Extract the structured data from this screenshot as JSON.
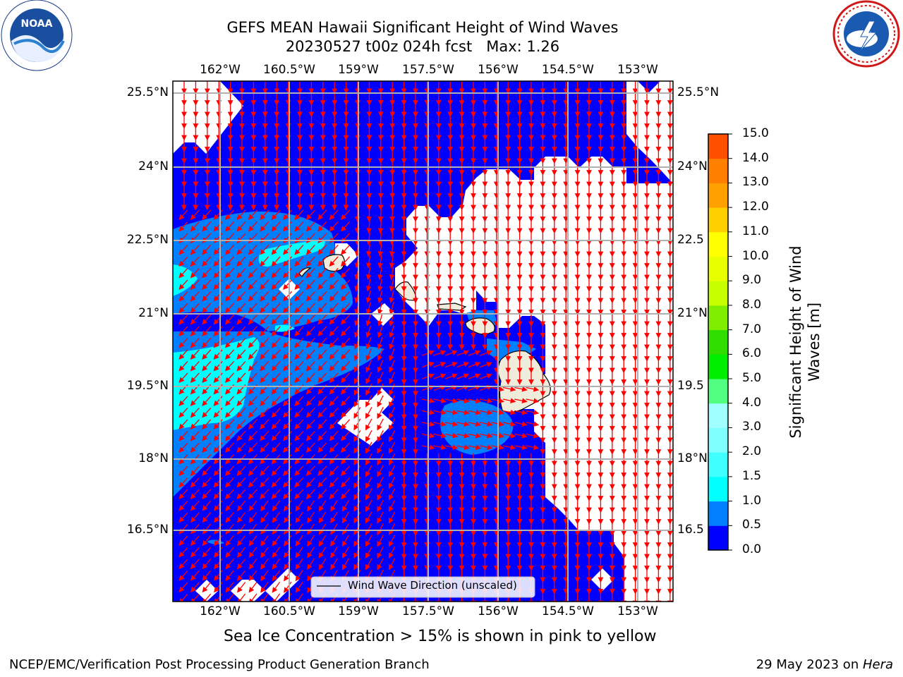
{
  "title_line1": "GEFS MEAN Hawaii Significant Height of Wind Waves",
  "title_line2": "20230527 t00z 024h fcst   Max: 1.26",
  "lon_ticks": [
    "162°W",
    "160.5°W",
    "159°W",
    "157.5°W",
    "156°W",
    "154.5°W",
    "153°W"
  ],
  "lat_ticks_left": [
    "25.5°N",
    "24°N",
    "22.5°N",
    "21°N",
    "19.5°N",
    "18°N",
    "16.5°N"
  ],
  "lat_ticks_right": [
    "25.5°N",
    "24°N",
    "22.5",
    "21°N",
    "19.5",
    "18°N",
    "16.5"
  ],
  "legend_label": "Wind Wave Direction (unscaled)",
  "colorbar": {
    "label_line1": "Significant Height of Wind",
    "label_line2": "Waves [m]",
    "ticks": [
      "15.0",
      "14.0",
      "13.0",
      "12.0",
      "11.0",
      "10.0",
      "9.0",
      "8.0",
      "7.0",
      "6.0",
      "5.0",
      "4.0",
      "3.0",
      "2.0",
      "1.5",
      "1.0",
      "0.5",
      "0.0"
    ],
    "colors": [
      "#0000ff",
      "#0080ff",
      "#00ffff",
      "#40ffff",
      "#80ffff",
      "#a0ffff",
      "#50ff80",
      "#00ee00",
      "#30dd00",
      "#80ee00",
      "#c8ff00",
      "#e8ff00",
      "#ffff00",
      "#ffd000",
      "#ffa000",
      "#ff8000",
      "#ff5000",
      "#ff2000",
      "#ff0000"
    ]
  },
  "subtitle": "Sea Ice Concentration > 15% is shown in pink to yellow",
  "footer_left": "NCEP/EMC/Verification Post Processing Product Generation Branch",
  "footer_right_prefix": "29 May 2023 on ",
  "footer_right_host": "Hera",
  "logos": {
    "left": "noaa-logo",
    "right": "nws-logo"
  }
}
